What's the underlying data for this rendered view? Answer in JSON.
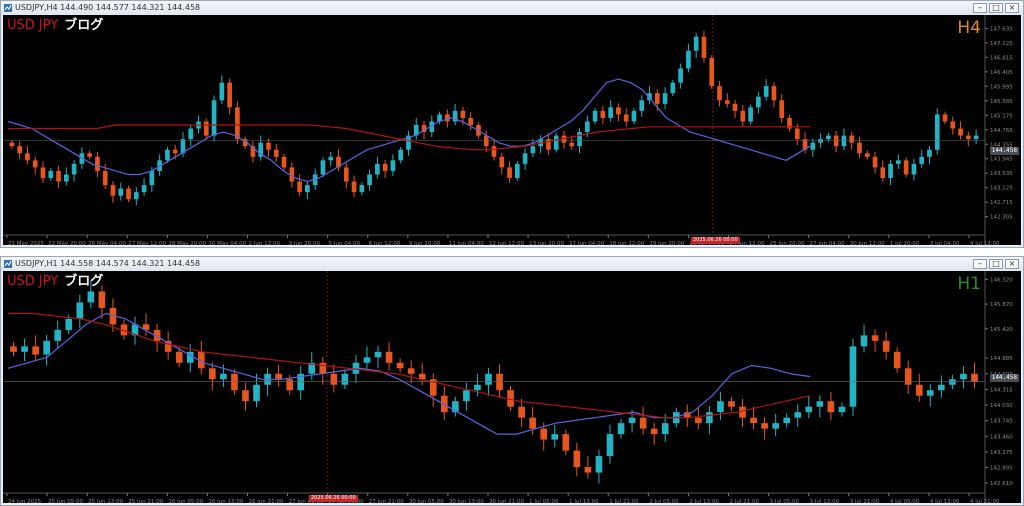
{
  "colors": {
    "bull": "#22b4c4",
    "bear": "#e8561f",
    "ma_fast": "#5b63e0",
    "ma_slow": "#b3140e",
    "grid": "#222222",
    "axis_text": "#8a8a8a",
    "crosshair": "#7a1a1a"
  },
  "windows": [
    {
      "title": "USDJPY,H4  144.490 144.577 144.321 144.458",
      "symbol_label": "USD JPY",
      "blog_label": "ブログ",
      "timeframe_label": "H4",
      "last_price": "144.458",
      "crosshair_label": "2025.06.26 00:00",
      "price_ticks": [
        "147.635",
        "147.225",
        "146.815",
        "146.405",
        "145.995",
        "145.585",
        "145.175",
        "144.765",
        "144.355",
        "143.945",
        "143.535",
        "143.125",
        "142.715",
        "142.305"
      ],
      "chart_data": {
        "type": "candlestick",
        "symbol": "USDJPY",
        "timeframe": "H4",
        "x_ticks": [
          "21 May 2025",
          "22 May 20:00",
          "26 May 04:00",
          "27 May 12:00",
          "28 May 20:00",
          "30 May 04:00",
          "2 Jun 12:00",
          "3 Jun 20:00",
          "5 Jun 04:00",
          "6 Jun 12:00",
          "9 Jun 20:00",
          "11 Jun 04:00",
          "12 Jun 12:00",
          "13 Jun 20:00",
          "17 Jun 04:00",
          "18 Jun 12:00",
          "19 Jun 20:00",
          "23 Jun 04:00",
          "24 Jun 12:00",
          "25 Jun 20:00",
          "27 Jun 04:00",
          "30 Jun 12:00",
          "1 Jul 20:00",
          "3 Jul 04:00",
          "4 Jul 12:00"
        ],
        "ylim": [
          141.9,
          147.9
        ],
        "close": [
          144.3,
          144.1,
          143.9,
          143.7,
          143.4,
          143.6,
          143.3,
          143.5,
          143.8,
          144.1,
          144.0,
          143.6,
          143.2,
          142.9,
          143.1,
          142.8,
          143.0,
          143.2,
          143.6,
          143.9,
          144.2,
          144.1,
          144.5,
          144.8,
          145.0,
          144.6,
          145.6,
          146.1,
          145.4,
          144.5,
          144.3,
          144.0,
          144.4,
          144.2,
          144.0,
          143.7,
          143.3,
          143.0,
          143.2,
          143.5,
          143.9,
          144.0,
          143.7,
          143.3,
          143.0,
          143.2,
          143.5,
          143.8,
          143.6,
          143.9,
          144.2,
          144.6,
          144.9,
          144.7,
          145.0,
          145.2,
          145.0,
          145.3,
          145.1,
          144.9,
          144.6,
          144.3,
          144.0,
          143.7,
          143.4,
          143.8,
          144.1,
          144.3,
          144.5,
          144.2,
          144.6,
          144.4,
          144.3,
          144.7,
          145.0,
          145.3,
          145.1,
          145.4,
          145.2,
          145.0,
          145.3,
          145.6,
          145.8,
          145.5,
          145.8,
          146.1,
          146.5,
          147.0,
          147.4,
          146.8,
          146.0,
          145.6,
          145.5,
          145.3,
          145.0,
          145.4,
          145.7,
          146.0,
          145.6,
          145.1,
          144.8,
          144.5,
          144.2,
          144.4,
          144.5,
          144.6,
          144.3,
          144.6,
          144.4,
          144.1,
          144.0,
          143.7,
          143.4,
          143.8,
          143.9,
          143.5,
          143.8,
          144.0,
          144.2,
          145.2,
          145.0,
          144.8,
          144.6,
          144.5,
          144.6
        ],
        "series": [
          {
            "name": "MA fast",
            "values": [
              145.0,
              144.9,
              144.8,
              144.6,
              144.4,
              144.2,
              144.0,
              143.8,
              143.7,
              143.6,
              143.5,
              143.5,
              143.6,
              143.8,
              144.0,
              144.2,
              144.4,
              144.6,
              144.7,
              144.6,
              144.4,
              144.1,
              143.9,
              143.6,
              143.4,
              143.3,
              143.4,
              143.6,
              143.8,
              144.0,
              144.2,
              144.3,
              144.4,
              144.5,
              144.6,
              144.8,
              145.0,
              145.1,
              145.0,
              144.8,
              144.6,
              144.4,
              144.3,
              144.3,
              144.4,
              144.6,
              144.8,
              145.0,
              145.3,
              145.7,
              146.1,
              146.2,
              146.1,
              145.9,
              145.5,
              145.1,
              144.9,
              144.7,
              144.6,
              144.5,
              144.4,
              144.3,
              144.2,
              144.1,
              144.0,
              143.9,
              144.1,
              144.3
            ]
          },
          {
            "name": "MA slow",
            "values": [
              144.8,
              144.8,
              144.8,
              144.8,
              144.8,
              144.8,
              144.9,
              144.9,
              144.9,
              144.9,
              144.9,
              144.9,
              144.9,
              144.9,
              144.9,
              144.9,
              144.9,
              144.9,
              144.85,
              144.8,
              144.7,
              144.6,
              144.5,
              144.4,
              144.3,
              144.25,
              144.2,
              144.2,
              144.25,
              144.3,
              144.4,
              144.5,
              144.6,
              144.7,
              144.75,
              144.8,
              144.85,
              144.85,
              144.85,
              144.85,
              144.85,
              144.85,
              144.85,
              144.85,
              144.85,
              144.85
            ]
          }
        ]
      }
    },
    {
      "title": "USDJPY,H1  144.558 144.574 144.321 144.458",
      "symbol_label": "USD JPY",
      "blog_label": "ブログ",
      "timeframe_label": "H1",
      "last_price": "144.458",
      "crosshair_label": "2025.06.26 00:00",
      "price_ticks": [
        "146.320",
        "145.870",
        "145.420",
        "144.885",
        "144.600",
        "144.315",
        "144.030",
        "143.745",
        "143.460",
        "143.175",
        "142.895",
        "142.610"
      ],
      "chart_data": {
        "type": "candlestick",
        "symbol": "USDJPY",
        "timeframe": "H1",
        "x_ticks": [
          "24 Jun 2025",
          "25 Jun 05:00",
          "25 Jun 13:00",
          "25 Jun 21:00",
          "26 Jun 05:00",
          "26 Jun 13:00",
          "26 Jun 21:00",
          "27 Jun 05:00",
          "27 Jun 13:00",
          "27 Jun 21:00",
          "30 Jun 05:00",
          "30 Jun 13:00",
          "30 Jun 21:00",
          "1 Jul 05:00",
          "1 Jul 13:00",
          "1 Jul 21:00",
          "2 Jul 05:00",
          "2 Jul 13:00",
          "2 Jul 21:00",
          "3 Jul 05:00",
          "3 Jul 13:00",
          "3 Jul 21:00",
          "4 Jul 05:00",
          "4 Jul 13:00",
          "4 Jul 21:00"
        ],
        "ylim": [
          142.5,
          146.4
        ],
        "close": [
          145.0,
          145.1,
          144.95,
          145.2,
          145.4,
          145.6,
          145.9,
          146.1,
          145.8,
          145.5,
          145.3,
          145.5,
          145.4,
          145.2,
          145.0,
          144.8,
          145.0,
          144.7,
          144.5,
          144.6,
          144.3,
          144.1,
          144.4,
          144.6,
          144.5,
          144.3,
          144.6,
          144.8,
          144.6,
          144.4,
          144.6,
          144.8,
          144.9,
          145.0,
          144.8,
          144.7,
          144.6,
          144.5,
          144.2,
          143.9,
          144.1,
          144.3,
          144.4,
          144.6,
          144.3,
          144.0,
          143.8,
          143.6,
          143.4,
          143.5,
          143.2,
          142.9,
          142.8,
          143.1,
          143.5,
          143.7,
          143.8,
          143.6,
          143.5,
          143.7,
          143.9,
          143.8,
          143.7,
          143.9,
          144.1,
          144.0,
          143.8,
          143.7,
          143.6,
          143.7,
          143.8,
          143.9,
          144.0,
          144.1,
          143.9,
          144.0,
          145.1,
          145.3,
          145.2,
          145.0,
          144.7,
          144.4,
          144.2,
          144.3,
          144.4,
          144.5,
          144.6,
          144.45
        ],
        "series": [
          {
            "name": "MA fast",
            "values": [
              144.7,
              144.8,
              144.9,
              145.2,
              145.5,
              145.7,
              145.6,
              145.4,
              145.2,
              145.0,
              144.8,
              144.7,
              144.6,
              144.5,
              144.5,
              144.55,
              144.6,
              144.65,
              144.7,
              144.65,
              144.5,
              144.3,
              144.1,
              143.9,
              143.7,
              143.5,
              143.5,
              143.6,
              143.7,
              143.75,
              143.8,
              143.85,
              143.9,
              143.8,
              143.8,
              143.9,
              144.2,
              144.6,
              144.75,
              144.7,
              144.6,
              144.55
            ]
          },
          {
            "name": "MA slow",
            "values": [
              145.7,
              145.7,
              145.65,
              145.6,
              145.5,
              145.35,
              145.2,
              145.1,
              145.0,
              144.95,
              144.9,
              144.85,
              144.8,
              144.75,
              144.7,
              144.65,
              144.6,
              144.5,
              144.4,
              144.3,
              144.2,
              144.1,
              144.05,
              144.0,
              143.95,
              143.9,
              143.85,
              143.8,
              143.8,
              143.85,
              143.9,
              144.0,
              144.1,
              144.2
            ]
          }
        ]
      }
    }
  ]
}
